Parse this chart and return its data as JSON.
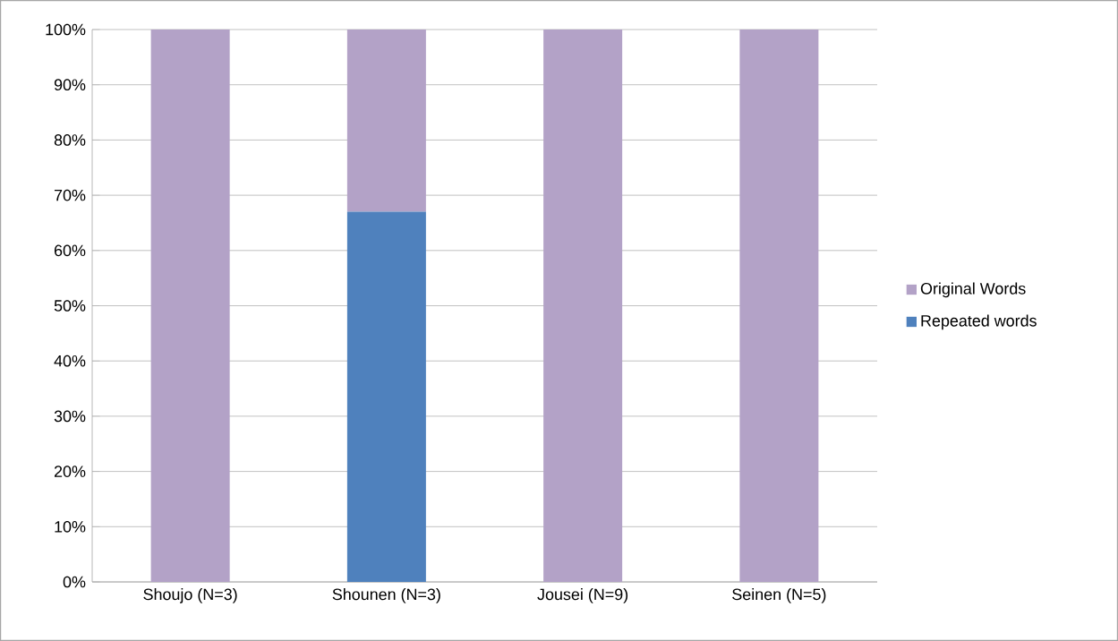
{
  "chart_data": {
    "type": "bar",
    "stacked": true,
    "categories": [
      "Shoujo (N=3)",
      "Shounen (N=3)",
      "Jousei (N=9)",
      "Seinen (N=5)"
    ],
    "series": [
      {
        "name": "Repeated words",
        "color": "#4f81bd",
        "values": [
          0,
          67,
          0,
          0
        ]
      },
      {
        "name": "Original Words",
        "color": "#b3a2c7",
        "values": [
          100,
          33,
          100,
          100
        ]
      }
    ],
    "ylim": [
      0,
      100
    ],
    "yticks": [
      {
        "value": 0,
        "label": "0%"
      },
      {
        "value": 10,
        "label": "10%"
      },
      {
        "value": 20,
        "label": "20%"
      },
      {
        "value": 30,
        "label": "30%"
      },
      {
        "value": 40,
        "label": "40%"
      },
      {
        "value": 50,
        "label": "50%"
      },
      {
        "value": 60,
        "label": "60%"
      },
      {
        "value": 70,
        "label": "70%"
      },
      {
        "value": 80,
        "label": "80%"
      },
      {
        "value": 90,
        "label": "90%"
      },
      {
        "value": 100,
        "label": "100%"
      }
    ],
    "grid": "y",
    "legend": "right"
  }
}
